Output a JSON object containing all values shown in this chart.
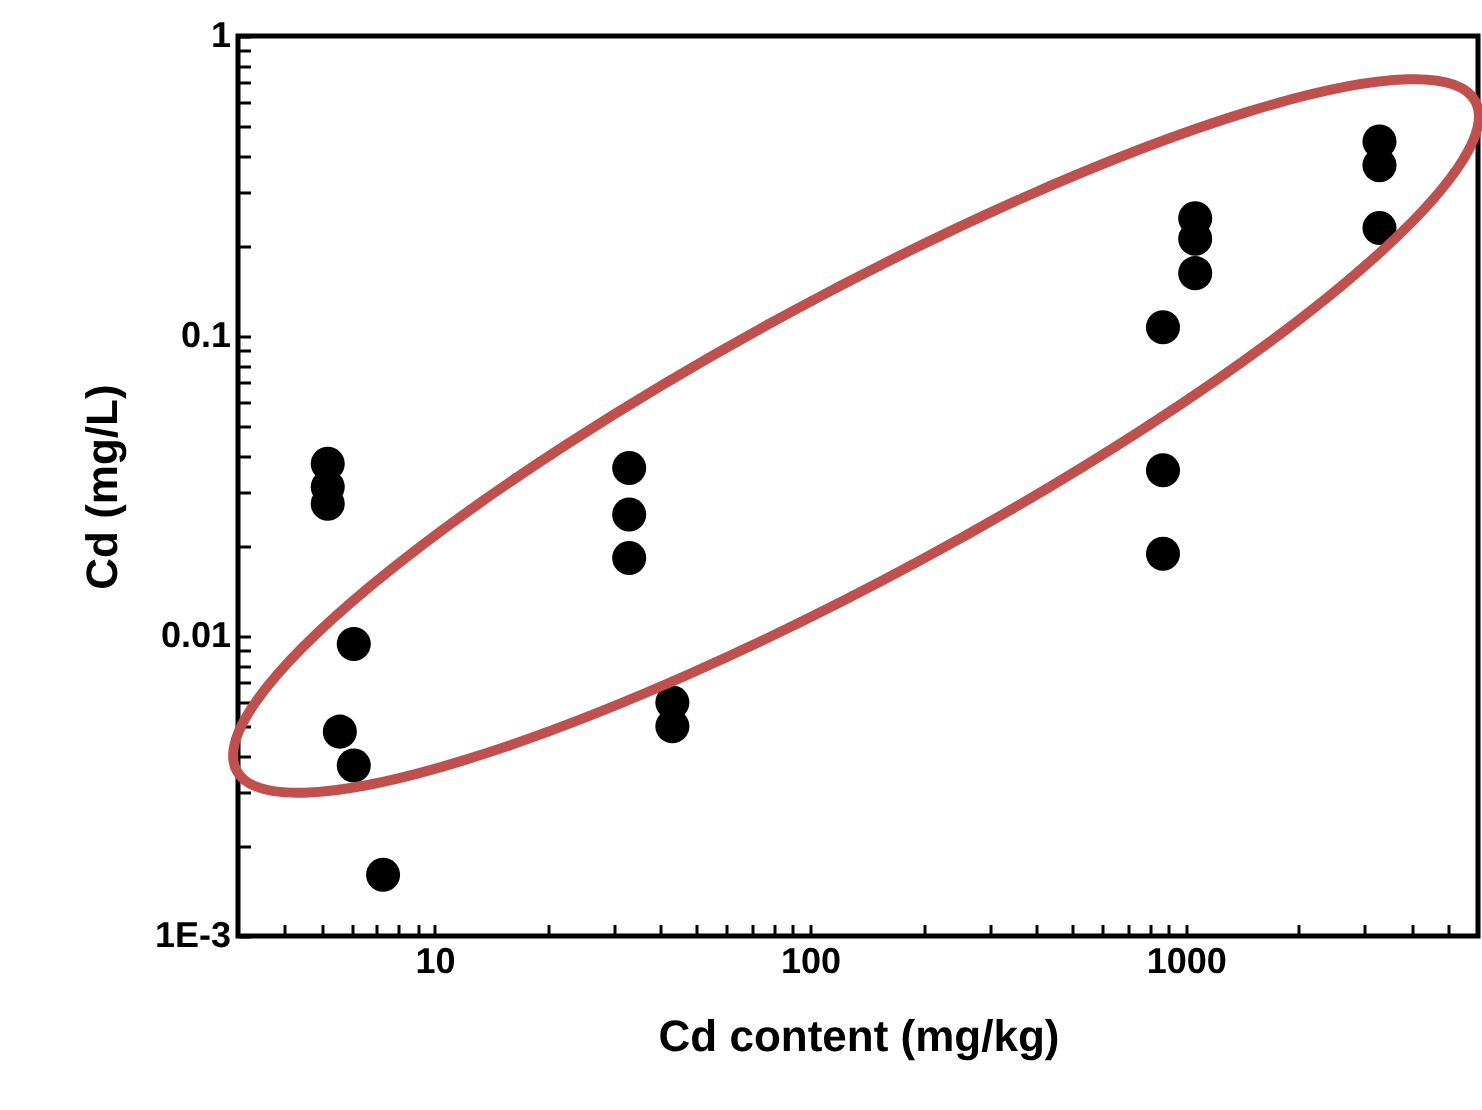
{
  "chart_data": {
    "type": "scatter",
    "xlabel": "Cd content (mg/kg)",
    "ylabel": "Cd (mg/L)",
    "log": "xy",
    "marker": "circle",
    "xlim": [
      3,
      6000
    ],
    "ylim": [
      0.001,
      1
    ],
    "xticks": [
      {
        "value": 4,
        "label": null
      },
      {
        "value": 5,
        "label": null
      },
      {
        "value": 6,
        "label": null
      },
      {
        "value": 7,
        "label": null
      },
      {
        "value": 8,
        "label": null
      },
      {
        "value": 9,
        "label": null
      },
      10,
      {
        "value": 20,
        "label": null
      },
      {
        "value": 30,
        "label": null
      },
      {
        "value": 40,
        "label": null
      },
      {
        "value": 50,
        "label": null
      },
      {
        "value": 60,
        "label": null
      },
      {
        "value": 70,
        "label": null
      },
      {
        "value": 80,
        "label": null
      },
      {
        "value": 90,
        "label": null
      },
      100,
      {
        "value": 200,
        "label": null
      },
      {
        "value": 300,
        "label": null
      },
      {
        "value": 400,
        "label": null
      },
      {
        "value": 500,
        "label": null
      },
      {
        "value": 600,
        "label": null
      },
      {
        "value": 700,
        "label": null
      },
      {
        "value": 800,
        "label": null
      },
      {
        "value": 900,
        "label": null
      },
      1000,
      {
        "value": 2000,
        "label": null
      },
      {
        "value": 3000,
        "label": null
      },
      {
        "value": 4000,
        "label": null
      },
      {
        "value": 5000,
        "label": null
      }
    ],
    "yticks": [
      {
        "value": 0.001,
        "label": "1E-3"
      },
      {
        "value": 0.002,
        "label": null
      },
      {
        "value": 0.003,
        "label": null
      },
      {
        "value": 0.004,
        "label": null
      },
      {
        "value": 0.005,
        "label": null
      },
      {
        "value": 0.006,
        "label": null
      },
      {
        "value": 0.007,
        "label": null
      },
      {
        "value": 0.008,
        "label": null
      },
      {
        "value": 0.009,
        "label": null
      },
      0.01,
      {
        "value": 0.02,
        "label": null
      },
      {
        "value": 0.03,
        "label": null
      },
      {
        "value": 0.04,
        "label": null
      },
      {
        "value": 0.05,
        "label": null
      },
      {
        "value": 0.06,
        "label": null
      },
      {
        "value": 0.07,
        "label": null
      },
      {
        "value": 0.08,
        "label": null
      },
      {
        "value": 0.09,
        "label": null
      },
      0.1,
      {
        "value": 0.2,
        "label": null
      },
      {
        "value": 0.3,
        "label": null
      },
      {
        "value": 0.4,
        "label": null
      },
      {
        "value": 0.5,
        "label": null
      },
      {
        "value": 0.6,
        "label": null
      },
      {
        "value": 0.7,
        "label": null
      },
      {
        "value": 0.8,
        "label": null
      },
      {
        "value": 0.9,
        "label": null
      },
      1
    ],
    "series": [
      {
        "color": "#000000",
        "x": [
          5.2,
          5.2,
          5.2,
          6.1,
          5.6,
          6.1,
          7.3,
          33,
          33,
          33,
          43,
          43,
          870,
          870,
          870,
          1060,
          1060,
          1060,
          3280,
          3280,
          3280
        ],
        "values": [
          0.0375,
          0.0314,
          0.0276,
          0.0094,
          0.0048,
          0.0037,
          0.0016,
          0.0363,
          0.0254,
          0.0182,
          0.006,
          0.005,
          0.107,
          0.0357,
          0.0188,
          0.247,
          0.211,
          0.162,
          0.445,
          0.371,
          0.229
        ]
      }
    ]
  }
}
